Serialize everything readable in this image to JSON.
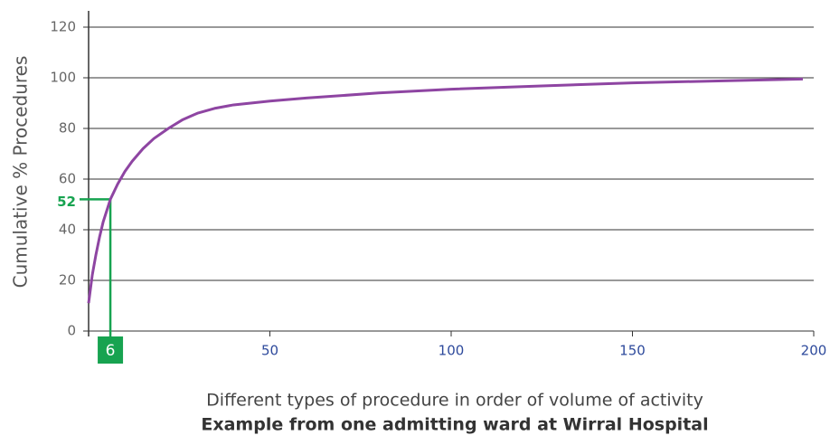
{
  "chart_data": {
    "type": "line",
    "y_axis_label": "Cumulative % Procedures",
    "x_axis_label": "Different types of procedure in order of volume of activity",
    "caption": "Example from one admitting ward at Wirral Hospital",
    "x": [
      0,
      1,
      2,
      3,
      4,
      6,
      8,
      10,
      12,
      15,
      18,
      22,
      26,
      30,
      35,
      40,
      50,
      60,
      80,
      100,
      125,
      150,
      175,
      197
    ],
    "series": [
      {
        "color": "#8e45a2",
        "values": [
          11,
          22,
          30,
          37,
          43,
          52,
          58,
          63,
          67,
          72,
          76,
          80,
          83.5,
          86,
          88,
          89.3,
          90.8,
          92,
          94,
          95.5,
          96.8,
          98,
          98.8,
          99.5
        ]
      }
    ],
    "xlim": [
      0,
      200
    ],
    "xticks": [
      50,
      100,
      150,
      200
    ],
    "ylim": [
      0,
      120
    ],
    "yticks": [
      0,
      20,
      40,
      60,
      80,
      100,
      120
    ],
    "grid": true,
    "annotation": {
      "x": 6,
      "y": 52,
      "color": "#17a350"
    }
  }
}
